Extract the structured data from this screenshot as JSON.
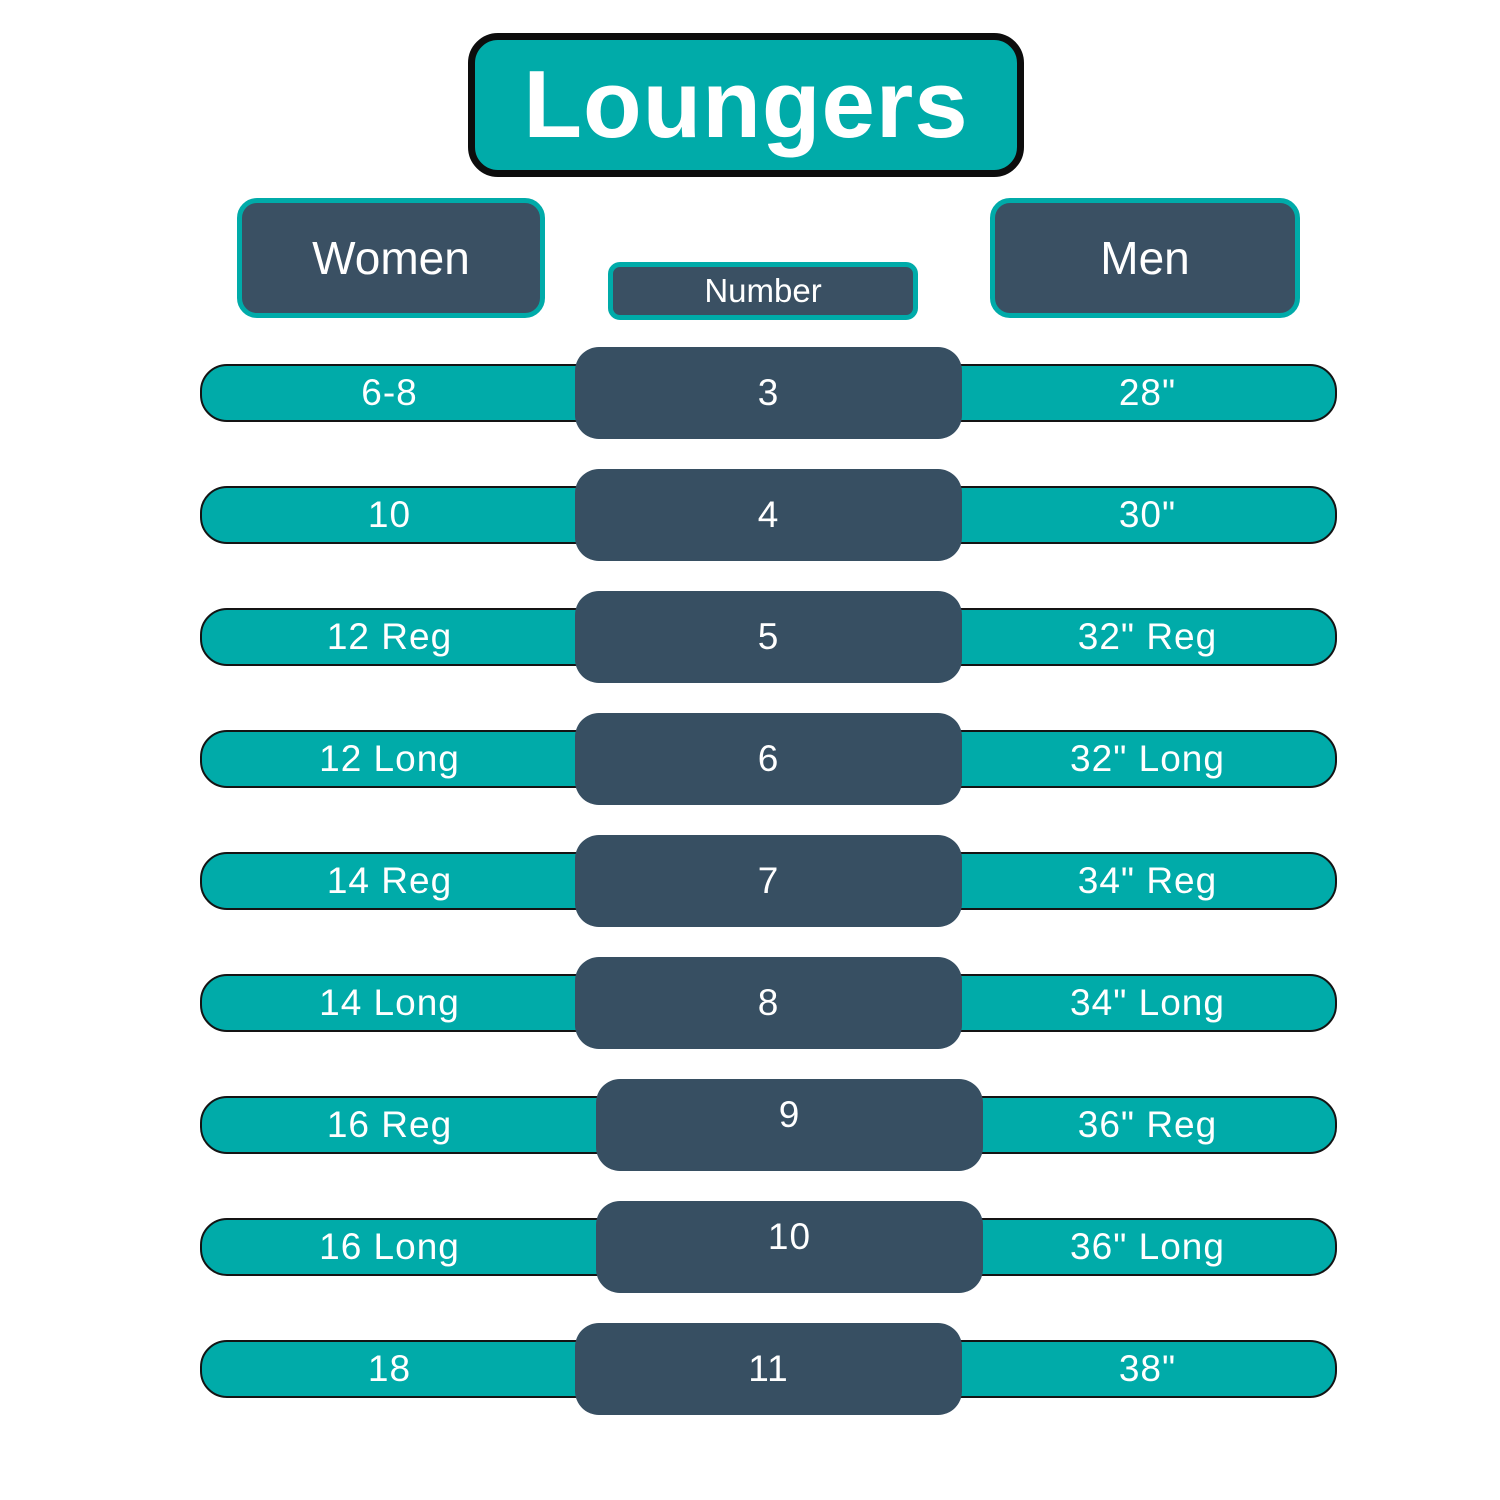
{
  "chart_data": {
    "type": "table",
    "title": "Loungers",
    "columns": {
      "women": "Women",
      "number": "Number",
      "men": "Men"
    },
    "rows": [
      {
        "women": "6-8",
        "number": "3",
        "men": "28\""
      },
      {
        "women": "10",
        "number": "4",
        "men": "30\""
      },
      {
        "women": "12 Reg",
        "number": "5",
        "men": "32\" Reg"
      },
      {
        "women": "12 Long",
        "number": "6",
        "men": "32\" Long"
      },
      {
        "women": "14 Reg",
        "number": "7",
        "men": "34\" Reg"
      },
      {
        "women": "14 Long",
        "number": "8",
        "men": "34\" Long"
      },
      {
        "women": "16 Reg",
        "number": "9",
        "men": "36\" Reg"
      },
      {
        "women": "16 Long",
        "number": "10",
        "men": "36\" Long"
      },
      {
        "women": "18",
        "number": "11",
        "men": "38\""
      }
    ],
    "layout_hints": {
      "row_count": 9,
      "legend": "none",
      "grid": "off"
    }
  },
  "colors": {
    "teal": "#00ABA9",
    "slate": "#374F62",
    "header-slate": "#3A5063",
    "ink": "#0D0D0D",
    "text": "#FFFFFF"
  }
}
